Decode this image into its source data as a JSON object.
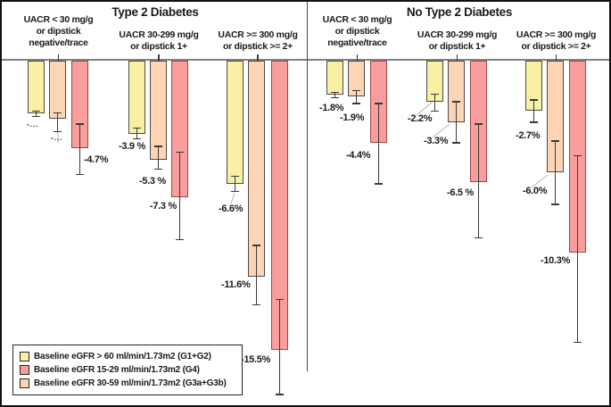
{
  "colors": {
    "g12_fill": "#FAF0A3",
    "g3ab_fill": "#FDD5B4",
    "g4_fill": "#FA9D9D",
    "bar_border": "#4A4A4A",
    "g4_border": "#994747",
    "axis_line": "#808080",
    "divider": "#4D4D4D",
    "error_bar": "#3A3A3A",
    "text": "#1A1A1A",
    "leader": "#B5B5B5"
  },
  "series_names": {
    "g12": "Baseline eGFR > 60 ml/min/1.73m2 (G1+G2)",
    "g4": "Baseline eGFR 15-29 ml/min/1.73m2 (G4)",
    "g3ab": "Baseline eGFR 30-59 ml/min/1.73m2 (G3a+G3b)"
  },
  "legend": {
    "items": [
      {
        "series": "g12",
        "label": "Baseline eGFR > 60 ml/min/1.73m2 (G1+G2)"
      },
      {
        "series": "g4",
        "label": "Baseline eGFR 15-29 ml/min/1.73m2 (G4)"
      },
      {
        "series": "g3ab",
        "label": "Baseline eGFR 30-59 ml/min/1.73m2 (G3a+G3b)"
      }
    ]
  },
  "chart_data": {
    "type": "bar",
    "unit": "%",
    "orientation": "vertical-downward",
    "baseline": 0,
    "legend_position": "bottom-left",
    "grid": false,
    "panels": [
      {
        "title": "Type 2 Diabetes",
        "groups": [
          {
            "category": "UACR < 30 mg/g or dipstick negative/trace",
            "category_lines": [
              "UACR < 30 mg/g",
              "or dipstick",
              "negative/trace"
            ],
            "bars": [
              {
                "series": "g12",
                "value": -2.8,
                "label": "-...",
                "ci": [
                  -2.7,
                  -3.0
                ]
              },
              {
                "series": "g3ab",
                "value": -3.1,
                "label": "-...",
                "ci": [
                  -2.8,
                  -3.8
                ]
              },
              {
                "series": "g4",
                "value": -4.7,
                "label": "-4.7%",
                "ci": [
                  -3.4,
                  -6.1
                ]
              }
            ]
          },
          {
            "category": "UACR 30-299 mg/g or dipstick 1+",
            "category_lines": [
              "UACR 30-299 mg/g",
              "or dipstick 1+"
            ],
            "bars": [
              {
                "series": "g12",
                "value": -3.9,
                "label": "-3.9 %",
                "ci": [
                  -3.6,
                  -4.2
                ]
              },
              {
                "series": "g3ab",
                "value": -5.3,
                "label": "-5.3 %",
                "ci": [
                  -4.6,
                  -5.8
                ]
              },
              {
                "series": "g4",
                "value": -7.3,
                "label": "-7.3 %",
                "ci": [
                  -4.9,
                  -9.6
                ]
              }
            ]
          },
          {
            "category": "UACR >= 300 mg/g or dipstick >= 2+",
            "category_lines": [
              "UACR >= 300 mg/g",
              "or dipstick >= 2+"
            ],
            "bars": [
              {
                "series": "g12",
                "value": -6.6,
                "label": "-6.6%",
                "ci": [
                  -6.2,
                  -7.0
                ]
              },
              {
                "series": "g3ab",
                "value": -11.6,
                "label": "-11.6%",
                "ci": [
                  -9.9,
                  -13.1
                ]
              },
              {
                "series": "g4",
                "value": -15.5,
                "label": "-15.5%",
                "ci": [
                  -12.8,
                  -17.9
                ]
              }
            ]
          }
        ]
      },
      {
        "title": "No Type 2 Diabetes",
        "groups": [
          {
            "category": "UACR < 30 mg/g or dipstick negative/trace",
            "category_lines": [
              "UACR < 30 mg/g",
              "or dipstick",
              "negative/trace"
            ],
            "bars": [
              {
                "series": "g12",
                "value": -1.8,
                "label": "-1.8%",
                "ci": [
                  -1.7,
                  -2.0
                ]
              },
              {
                "series": "g3ab",
                "value": -1.9,
                "label": "-1.9%",
                "ci": [
                  -1.6,
                  -2.3
                ]
              },
              {
                "series": "g4",
                "value": -4.4,
                "label": "-4.4%",
                "ci": [
                  -2.3,
                  -6.6
                ]
              }
            ]
          },
          {
            "category": "UACR 30-299 mg/g or dipstick 1+",
            "category_lines": [
              "UACR 30-299 mg/g",
              "or dipstick 1+"
            ],
            "bars": [
              {
                "series": "g12",
                "value": -2.2,
                "label": "-2.2%",
                "ci": [
                  -1.8,
                  -2.7
                ]
              },
              {
                "series": "g3ab",
                "value": -3.3,
                "label": "-3.3%",
                "ci": [
                  -2.2,
                  -4.4
                ]
              },
              {
                "series": "g4",
                "value": -6.5,
                "label": "-6.5 %",
                "ci": [
                  -3.4,
                  -9.5
                ]
              }
            ]
          },
          {
            "category": "UACR >= 300 mg/g or dipstick >= 2+",
            "category_lines": [
              "UACR >= 300 mg/g",
              "or dipstick >= 2+"
            ],
            "bars": [
              {
                "series": "g12",
                "value": -2.7,
                "label": "-2.7%",
                "ci": [
                  -2.1,
                  -3.3
                ]
              },
              {
                "series": "g3ab",
                "value": -6.0,
                "label": "-6.0%",
                "ci": [
                  -4.3,
                  -7.7
                ]
              },
              {
                "series": "g4",
                "value": -10.3,
                "label": "-10.3%",
                "ci": [
                  -5.1,
                  -15.1
                ]
              }
            ]
          }
        ]
      }
    ]
  }
}
